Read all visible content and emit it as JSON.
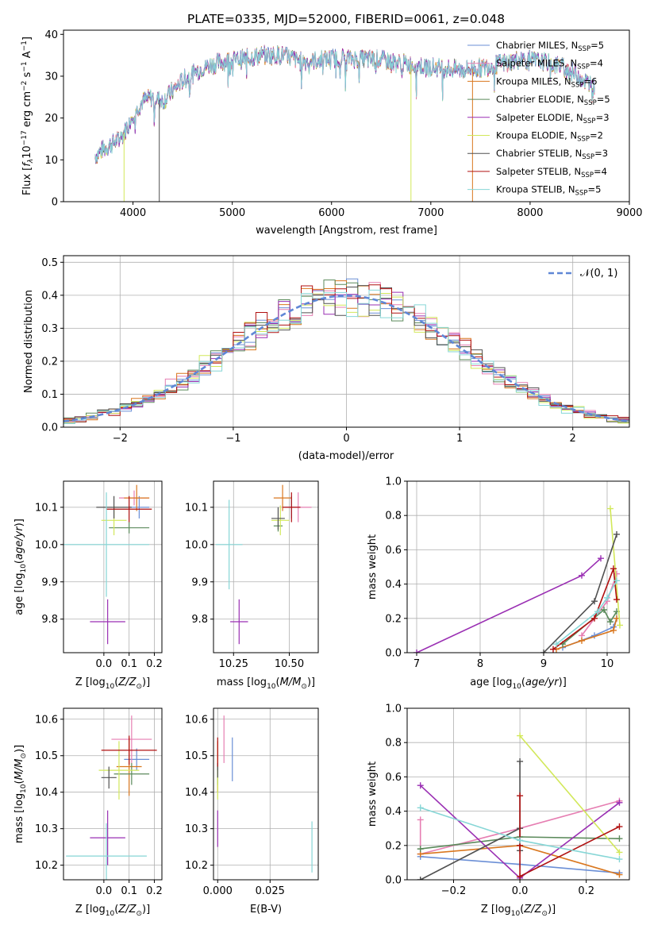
{
  "figure_title": "PLATE=0335, MJD=52000, FIBERID=0061, z=0.048",
  "colors": {
    "Chabrier MILES": "#6b8fd6",
    "Salpeter MILES": "#e67eb2",
    "Kroupa MILES": "#d9771f",
    "Chabrier ELODIE": "#5b8a5b",
    "Salpeter ELODIE": "#9a2fb3",
    "Kroupa ELODIE": "#d2e85a",
    "Chabrier STELIB": "#505050",
    "Salpeter STELIB": "#b01010",
    "Kroupa STELIB": "#86d6d6",
    "gaussian": "#5f87d6"
  },
  "chart_data": [
    {
      "type": "line",
      "title": "PLATE=0335, MJD=52000, FIBERID=0061, z=0.048",
      "xlabel": "wavelength [Angstrom, rest frame]",
      "ylabel_parts": [
        "Flux [",
        "f",
        "λ",
        "10",
        "−17",
        " erg cm",
        "−2",
        " s",
        "−1",
        " A",
        "−1",
        "]"
      ],
      "xlim": [
        3300,
        9000
      ],
      "ylim": [
        0,
        41
      ],
      "xticks": [
        4000,
        5000,
        6000,
        7000,
        8000,
        9000
      ],
      "yticks": [
        0,
        10,
        20,
        30,
        40
      ],
      "legend_loc": "upper right",
      "series": [
        {
          "label": "Chabrier MILES",
          "nssp": "5"
        },
        {
          "label": "Salpeter MILES",
          "nssp": "4"
        },
        {
          "label": "Kroupa MILES",
          "nssp": "6"
        },
        {
          "label": "Chabrier ELODIE",
          "nssp": "5"
        },
        {
          "label": "Salpeter ELODIE",
          "nssp": "3"
        },
        {
          "label": "Kroupa ELODIE",
          "nssp": "2"
        },
        {
          "label": "Chabrier STELIB",
          "nssp": "3"
        },
        {
          "label": "Salpeter STELIB",
          "nssp": "4"
        },
        {
          "label": "Kroupa STELIB",
          "nssp": "5"
        }
      ],
      "continuum_x": [
        3620,
        3700,
        3800,
        3900,
        4000,
        4100,
        4200,
        4300,
        4500,
        4700,
        4900,
        5100,
        5300,
        5500,
        5700,
        5900,
        6100,
        6300,
        6500,
        6700,
        6900,
        7100,
        7300,
        7500,
        7700,
        7900,
        8100,
        8300,
        8500,
        8650
      ],
      "continuum_y": [
        11,
        12.5,
        14,
        16,
        21,
        24,
        25,
        24,
        29,
        32,
        33.5,
        34,
        35,
        35,
        33.5,
        34,
        34.5,
        34,
        34,
        33,
        32.5,
        32,
        31.5,
        32,
        33,
        34,
        33.5,
        32.5,
        30,
        27
      ],
      "spikes": [
        {
          "x": 3910,
          "to": 0
        },
        {
          "x": 4265,
          "to": 0
        },
        {
          "x": 6800,
          "to": 0
        },
        {
          "x": 7420,
          "to": 0
        }
      ],
      "legend_label_template": "N",
      "nssp_sub": "SSP",
      "nssp_eq": "="
    },
    {
      "type": "step",
      "xlabel": "(data-model)/error",
      "ylabel": "Normed distribution",
      "xlim": [
        -2.5,
        2.5
      ],
      "ylim": [
        0,
        0.52
      ],
      "xticks": [
        -2,
        -1,
        0,
        1,
        2
      ],
      "yticks": [
        0.0,
        0.1,
        0.2,
        0.3,
        0.4,
        0.5
      ],
      "grid": true,
      "bin_width": 0.1,
      "bin_start": -2.5,
      "reference_label": "𝒩(0, 1)",
      "legend_loc": "upper right"
    },
    {
      "type": "scatter",
      "xlabel": "Z [log10(Z/Z⊙)]",
      "ylabel": "age  [log10(age/yr)]",
      "xlim": [
        -0.16,
        0.23
      ],
      "ylim": [
        9.71,
        10.17
      ],
      "xticks": [
        0.0,
        0.1,
        0.2
      ],
      "yticks": [
        9.8,
        9.9,
        10.0,
        10.1
      ],
      "grid": true,
      "points": [
        {
          "series": "Chabrier MILES",
          "x": 0.14,
          "y": 10.1,
          "xerr": 0.04,
          "yerr": 0.03
        },
        {
          "series": "Salpeter MILES",
          "x": 0.12,
          "y": 10.125,
          "xerr": 0.06,
          "yerr": 0.02
        },
        {
          "series": "Kroupa MILES",
          "x": 0.13,
          "y": 10.125,
          "xerr": 0.05,
          "yerr": 0.035
        },
        {
          "series": "Chabrier ELODIE",
          "x": 0.1,
          "y": 10.045,
          "xerr": 0.08,
          "yerr": 0.015
        },
        {
          "series": "Salpeter ELODIE",
          "x": 0.015,
          "y": 9.793,
          "xerr": 0.07,
          "yerr": 0.06
        },
        {
          "series": "Kroupa ELODIE",
          "x": 0.04,
          "y": 10.065,
          "xerr": 0.05,
          "yerr": 0.04
        },
        {
          "series": "Chabrier STELIB",
          "x": 0.04,
          "y": 10.1,
          "xerr": 0.07,
          "yerr": 0.03
        },
        {
          "series": "Salpeter STELIB",
          "x": 0.1,
          "y": 10.095,
          "xerr": 0.09,
          "yerr": 0.035
        },
        {
          "series": "Kroupa STELIB",
          "x": 0.01,
          "y": 10.0,
          "xerr": 0.17,
          "yerr": 0.14
        }
      ]
    },
    {
      "type": "scatter",
      "xlabel": "mass [log10(M/M⊙)]",
      "ylabel": "",
      "xlim": [
        10.16,
        10.63
      ],
      "ylim": [
        9.71,
        10.17
      ],
      "xticks": [
        10.25,
        10.5
      ],
      "yticks": [
        9.8,
        9.9,
        10.0,
        10.1
      ],
      "grid": true,
      "points": [
        {
          "series": "Chabrier MILES",
          "x": 10.51,
          "y": 10.1,
          "xerr": 0.04,
          "yerr": 0.03
        },
        {
          "series": "Salpeter MILES",
          "x": 10.54,
          "y": 10.1,
          "xerr": 0.06,
          "yerr": 0.04
        },
        {
          "series": "Kroupa MILES",
          "x": 10.47,
          "y": 10.125,
          "xerr": 0.04,
          "yerr": 0.035
        },
        {
          "series": "Chabrier ELODIE",
          "x": 10.45,
          "y": 10.05,
          "xerr": 0.02,
          "yerr": 0.015
        },
        {
          "series": "Salpeter ELODIE",
          "x": 10.275,
          "y": 9.793,
          "xerr": 0.04,
          "yerr": 0.06
        },
        {
          "series": "Kroupa ELODIE",
          "x": 10.46,
          "y": 10.065,
          "xerr": 0.04,
          "yerr": 0.04
        },
        {
          "series": "Chabrier STELIB",
          "x": 10.45,
          "y": 10.07,
          "xerr": 0.03,
          "yerr": 0.03
        },
        {
          "series": "Salpeter STELIB",
          "x": 10.51,
          "y": 10.1,
          "xerr": 0.04,
          "yerr": 0.04
        },
        {
          "series": "Kroupa STELIB",
          "x": 10.23,
          "y": 10.0,
          "xerr": 0.06,
          "yerr": 0.12
        }
      ]
    },
    {
      "type": "line",
      "xlabel": "age  [log10(age/yr)]",
      "ylabel": "mass weight",
      "xlim": [
        6.85,
        10.35
      ],
      "ylim": [
        0,
        1.0
      ],
      "xticks": [
        7,
        8,
        9,
        10
      ],
      "yticks": [
        0.0,
        0.2,
        0.4,
        0.6,
        0.8,
        1.0
      ],
      "grid": true,
      "series": [
        {
          "name": "Chabrier MILES",
          "x": [
            9.3,
            9.8,
            10.1,
            10.15
          ],
          "y": [
            0.03,
            0.1,
            0.15,
            0.2
          ]
        },
        {
          "name": "Salpeter MILES",
          "x": [
            9.6,
            10.0,
            10.15
          ],
          "y": [
            0.1,
            0.3,
            0.46
          ]
        },
        {
          "name": "Kroupa MILES",
          "x": [
            9.2,
            9.6,
            10.1,
            10.15
          ],
          "y": [
            0.02,
            0.07,
            0.13,
            0.2
          ]
        },
        {
          "name": "Chabrier ELODIE",
          "x": [
            9.3,
            9.95,
            10.05,
            10.15
          ],
          "y": [
            0.05,
            0.25,
            0.18,
            0.24
          ]
        },
        {
          "name": "Salpeter ELODIE",
          "x": [
            7.0,
            9.6,
            9.9
          ],
          "y": [
            0.0,
            0.45,
            0.55
          ]
        },
        {
          "name": "Kroupa ELODIE",
          "x": [
            10.05,
            10.2
          ],
          "y": [
            0.84,
            0.16
          ]
        },
        {
          "name": "Chabrier STELIB",
          "x": [
            9.0,
            9.8,
            10.15
          ],
          "y": [
            0.0,
            0.3,
            0.69
          ]
        },
        {
          "name": "Salpeter STELIB",
          "x": [
            9.15,
            9.8,
            10.1,
            10.15
          ],
          "y": [
            0.02,
            0.2,
            0.49,
            0.31
          ]
        },
        {
          "name": "Kroupa STELIB",
          "x": [
            9.2,
            9.85,
            10.0,
            10.15
          ],
          "y": [
            0.05,
            0.24,
            0.32,
            0.42
          ]
        }
      ]
    },
    {
      "type": "scatter",
      "xlabel": "Z [log10(Z/Z⊙)]",
      "ylabel": "mass [log10(M/M⊙)]",
      "xlim": [
        -0.16,
        0.23
      ],
      "ylim": [
        10.16,
        10.63
      ],
      "xticks": [
        0.0,
        0.1,
        0.2
      ],
      "yticks": [
        10.2,
        10.3,
        10.4,
        10.5,
        10.6
      ],
      "grid": true,
      "points": [
        {
          "series": "Chabrier MILES",
          "x": 0.13,
          "y": 10.49,
          "xerr": 0.05,
          "yerr": 0.03
        },
        {
          "series": "Salpeter MILES",
          "x": 0.11,
          "y": 10.545,
          "xerr": 0.08,
          "yerr": 0.065
        },
        {
          "series": "Kroupa MILES",
          "x": 0.1,
          "y": 10.47,
          "xerr": 0.05,
          "yerr": 0.08
        },
        {
          "series": "Chabrier ELODIE",
          "x": 0.11,
          "y": 10.45,
          "xerr": 0.07,
          "yerr": 0.03
        },
        {
          "series": "Salpeter ELODIE",
          "x": 0.015,
          "y": 10.275,
          "xerr": 0.07,
          "yerr": 0.075
        },
        {
          "series": "Kroupa ELODIE",
          "x": 0.06,
          "y": 10.46,
          "xerr": 0.08,
          "yerr": 0.08
        },
        {
          "series": "Chabrier STELIB",
          "x": 0.02,
          "y": 10.44,
          "xerr": 0.03,
          "yerr": 0.03
        },
        {
          "series": "Salpeter STELIB",
          "x": 0.1,
          "y": 10.515,
          "xerr": 0.11,
          "yerr": 0.04
        },
        {
          "series": "Kroupa STELIB",
          "x": 0.01,
          "y": 10.225,
          "xerr": 0.16,
          "yerr": 0.09
        }
      ]
    },
    {
      "type": "scatter",
      "xlabel": "E(B-V)",
      "ylabel": "",
      "xlim": [
        -0.002,
        0.048
      ],
      "ylim": [
        10.16,
        10.63
      ],
      "xticks": [
        0.0,
        0.025
      ],
      "yticks": [
        10.2,
        10.3,
        10.4,
        10.5,
        10.6
      ],
      "grid": true,
      "points": [
        {
          "series": "Chabrier MILES",
          "x": 0.007,
          "y": 10.49,
          "xerr": 0,
          "yerr": 0.06
        },
        {
          "series": "Salpeter MILES",
          "x": 0.003,
          "y": 10.545,
          "xerr": 0,
          "yerr": 0.065
        },
        {
          "series": "Kroupa MILES",
          "x": 0.0,
          "y": 10.47,
          "xerr": 0,
          "yerr": 0.07
        },
        {
          "series": "Chabrier ELODIE",
          "x": 0.0,
          "y": 10.45,
          "xerr": 0,
          "yerr": 0.03
        },
        {
          "series": "Salpeter ELODIE",
          "x": 0.0,
          "y": 10.3,
          "xerr": 0,
          "yerr": 0.05
        },
        {
          "series": "Kroupa ELODIE",
          "x": 0.0,
          "y": 10.42,
          "xerr": 0,
          "yerr": 0.04
        },
        {
          "series": "Chabrier STELIB",
          "x": 0.0,
          "y": 10.46,
          "xerr": 0,
          "yerr": 0.02
        },
        {
          "series": "Salpeter STELIB",
          "x": 0.0,
          "y": 10.51,
          "xerr": 0,
          "yerr": 0.04
        },
        {
          "series": "Kroupa STELIB",
          "x": 0.045,
          "y": 10.25,
          "xerr": 0,
          "yerr": 0.07
        }
      ]
    },
    {
      "type": "line",
      "xlabel": "Z [log10(Z/Z⊙)]",
      "ylabel": "mass weight",
      "xlim": [
        -0.34,
        0.33
      ],
      "ylim": [
        0,
        1.0
      ],
      "xticks": [
        -0.2,
        0.0,
        0.2
      ],
      "yticks": [
        0.0,
        0.2,
        0.4,
        0.6,
        0.8,
        1.0
      ],
      "grid": true,
      "series": [
        {
          "name": "Chabrier MILES",
          "x": [
            -0.3,
            0.0,
            0.3
          ],
          "y": [
            0.135,
            0.09,
            0.04
          ]
        },
        {
          "name": "Salpeter MILES",
          "x": [
            -0.3,
            -0.3,
            0.0,
            0.3
          ],
          "y": [
            0.35,
            0.15,
            0.3,
            0.46
          ]
        },
        {
          "name": "Kroupa MILES",
          "x": [
            -0.3,
            0.0,
            0.3
          ],
          "y": [
            0.15,
            0.2,
            0.03
          ]
        },
        {
          "name": "Chabrier ELODIE",
          "x": [
            -0.3,
            0.0,
            0.3
          ],
          "y": [
            0.18,
            0.25,
            0.24
          ]
        },
        {
          "name": "Salpeter ELODIE",
          "x": [
            -0.3,
            0.0,
            0.3
          ],
          "y": [
            0.55,
            0.01,
            0.45
          ]
        },
        {
          "name": "Kroupa ELODIE",
          "x": [
            0.0,
            0.3
          ],
          "y": [
            0.84,
            0.16
          ]
        },
        {
          "name": "Chabrier STELIB",
          "x": [
            -0.3,
            0.0,
            0.0,
            0.0
          ],
          "y": [
            0.0,
            0.3,
            0.17,
            0.69
          ]
        },
        {
          "name": "Salpeter STELIB",
          "x": [
            0.0,
            0.0,
            0.0,
            0.3
          ],
          "y": [
            0.49,
            0.2,
            0.02,
            0.31
          ]
        },
        {
          "name": "Kroupa STELIB",
          "x": [
            -0.3,
            0.0,
            0.3
          ],
          "y": [
            0.42,
            0.23,
            0.12
          ]
        }
      ]
    }
  ]
}
